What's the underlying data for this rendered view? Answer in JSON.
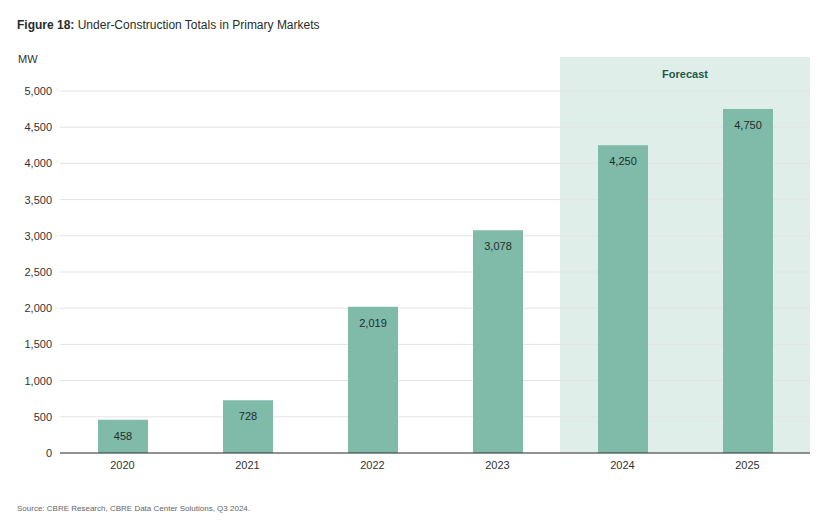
{
  "chart_data": {
    "type": "bar",
    "title": "Figure 18: Under-Construction Totals in Primary Markets",
    "y_label": "MW",
    "categories": [
      "2020",
      "2021",
      "2022",
      "2023",
      "2024",
      "2025"
    ],
    "values": [
      458,
      728,
      2019,
      3078,
      4250,
      4750
    ],
    "value_labels": [
      "458",
      "728",
      "2,019",
      "3,078",
      "4,250",
      "4,750"
    ],
    "color": "#80bbaa",
    "ylim": [
      0,
      5000
    ],
    "yticks": [
      0,
      500,
      {
        "value": 1000,
        "label": "1,000"
      },
      {
        "value": 1500,
        "label": "1,500"
      },
      {
        "value": 2000,
        "label": "2,000"
      },
      {
        "value": 2500,
        "label": "2,500"
      },
      {
        "value": 3000,
        "label": "3,000"
      },
      {
        "value": 3500,
        "label": "3,500"
      },
      {
        "value": 4000,
        "label": "4,000"
      },
      {
        "value": 4500,
        "label": "4,500"
      },
      {
        "value": 5000,
        "label": "5,000"
      }
    ],
    "grid": true,
    "data_labels": true,
    "forecast": {
      "label": "Forecast",
      "categories": [
        "2024",
        "2025"
      ]
    },
    "source": "Source: CBRE Research, CBRE Data Center Solutions, Q3 2024."
  }
}
